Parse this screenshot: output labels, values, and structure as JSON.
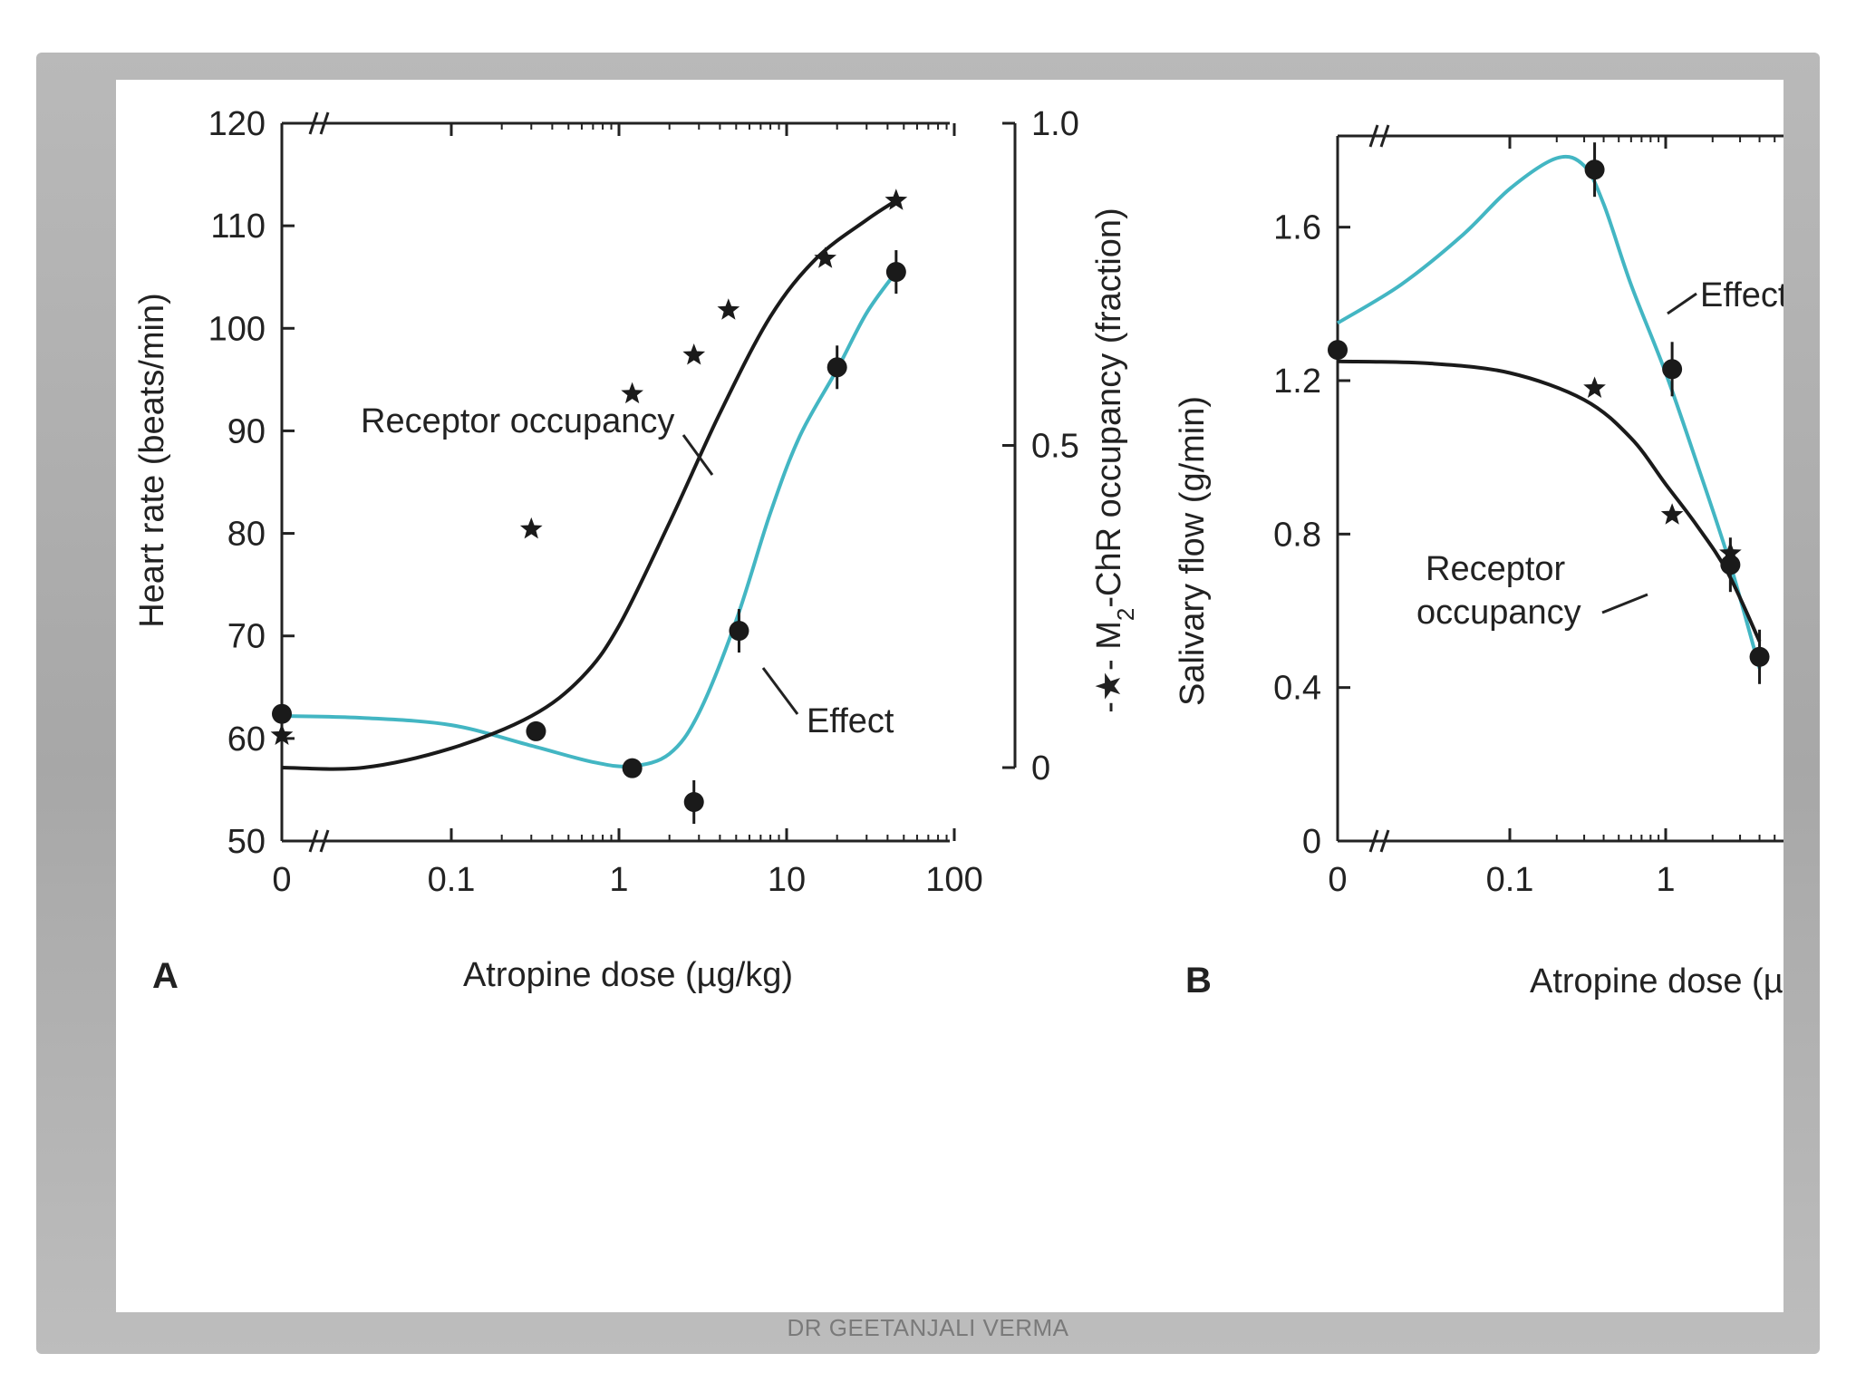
{
  "footer": "DR GEETANJALI VERMA",
  "colors": {
    "occupancy": "#1a1a1a",
    "effect": "#43b6c3",
    "axis": "#222222",
    "frame": "#b0b0b0"
  },
  "chart_data": [
    {
      "panel_label": "A",
      "type": "line",
      "xlabel": "Atropine dose (µg/kg)",
      "x_scale": "log with broken axis at 0",
      "x_ticks": [
        "0",
        "0.1",
        "1",
        "10",
        "100"
      ],
      "ylabel": "Heart rate (beats/min)",
      "ylim": [
        50,
        120
      ],
      "y_ticks": [
        50,
        60,
        70,
        80,
        90,
        100,
        110,
        120
      ],
      "y2label_prefix": "-★- M",
      "y2label_sub": "2",
      "y2label_suffix": "-ChR occupancy (fraction)",
      "y2lim": [
        0,
        1
      ],
      "y2_ticks": [
        "0",
        "0.5",
        "1.0"
      ],
      "series": [
        {
          "name": "Receptor occupancy",
          "marker": "star",
          "axis": "right",
          "x": [
            0,
            0.3,
            1.2,
            2.8,
            4.5,
            17,
            45
          ],
          "y": [
            0.05,
            0.37,
            0.58,
            0.64,
            0.71,
            0.79,
            0.88
          ],
          "curve": {
            "x": [
              0,
              0.03,
              0.1,
              0.3,
              0.6,
              1,
              2,
              4,
              8,
              15,
              30,
              45
            ],
            "y": [
              0.0,
              0.0,
              0.03,
              0.08,
              0.14,
              0.22,
              0.38,
              0.55,
              0.7,
              0.79,
              0.85,
              0.88
            ]
          }
        },
        {
          "name": "Effect",
          "marker": "circle",
          "axis": "left",
          "x": [
            0,
            0.32,
            1.2,
            2.8,
            5.2,
            20,
            45
          ],
          "y": [
            62.4,
            60.7,
            57.1,
            53.8,
            70.5,
            96.2,
            105.5
          ],
          "curve": {
            "x": [
              0,
              0.03,
              0.1,
              0.3,
              0.7,
              1.2,
              2,
              3,
              5,
              8,
              12,
              20,
              30,
              45
            ],
            "y": [
              62.2,
              62.0,
              61.3,
              59.3,
              57.7,
              57.3,
              58.5,
              62.5,
              71.5,
              82.0,
              89.5,
              96.0,
              101.5,
              105.5
            ]
          }
        }
      ],
      "labels": [
        {
          "text": "Receptor occupancy",
          "series": "Receptor occupancy"
        },
        {
          "text": "Effect",
          "series": "Effect"
        }
      ]
    },
    {
      "panel_label": "B",
      "type": "line",
      "xlabel": "Atropine dose (µ",
      "x_scale": "log with broken axis at 0",
      "x_ticks": [
        "0",
        "0.1",
        "1"
      ],
      "ylabel": "Salivary flow (g/min)",
      "ylim": [
        0,
        1.9
      ],
      "y_ticks": [
        "0",
        "0.4",
        "0.8",
        "1.2",
        "1.6"
      ],
      "series": [
        {
          "name": "Receptor occupancy",
          "marker": "star",
          "x": [
            0.35,
            1.1,
            2.6
          ],
          "y": [
            1.18,
            0.85,
            0.75
          ],
          "curve": {
            "x": [
              0,
              0.03,
              0.1,
              0.3,
              0.6,
              1,
              1.6,
              2.5,
              4
            ],
            "y": [
              1.25,
              1.245,
              1.22,
              1.15,
              1.05,
              0.93,
              0.82,
              0.7,
              0.52
            ]
          }
        },
        {
          "name": "Effect",
          "marker": "circle",
          "x": [
            0,
            0.35,
            1.1,
            2.6,
            4
          ],
          "y": [
            1.28,
            1.75,
            1.23,
            0.72,
            0.48
          ],
          "curve": {
            "x": [
              0,
              0.02,
              0.05,
              0.1,
              0.2,
              0.3,
              0.4,
              0.6,
              1,
              1.6,
              2.6,
              4
            ],
            "y": [
              1.35,
              1.45,
              1.58,
              1.7,
              1.78,
              1.76,
              1.66,
              1.45,
              1.22,
              0.98,
              0.72,
              0.45
            ]
          }
        }
      ],
      "labels": [
        {
          "text": "Effect",
          "series": "Effect"
        },
        {
          "text": "Receptor",
          "series": "Receptor occupancy"
        },
        {
          "text": "occupancy",
          "series": "Receptor occupancy"
        }
      ]
    }
  ]
}
